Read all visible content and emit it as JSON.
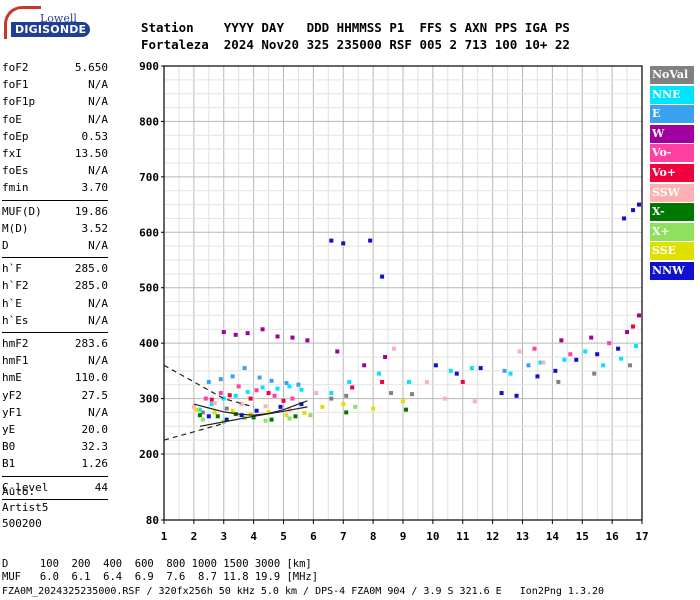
{
  "logo": {
    "line1": "Lowell",
    "line2": "DIGISONDE"
  },
  "header": {
    "row1": "Station    YYYY DAY   DDD HHMMSS P1  FFS S AXN PPS IGA PS",
    "row2": "Fortaleza  2024 Nov20 325 235000 RSF 005 2 713 100 10+ 22"
  },
  "params": [
    {
      "group": [
        {
          "k": "foF2",
          "v": "5.650"
        },
        {
          "k": "foF1",
          "v": "N/A"
        },
        {
          "k": "foF1p",
          "v": "N/A"
        },
        {
          "k": "foE",
          "v": "N/A"
        },
        {
          "k": "foEp",
          "v": "0.53"
        },
        {
          "k": "fxI",
          "v": "13.50"
        },
        {
          "k": "foEs",
          "v": "N/A"
        },
        {
          "k": "fmin",
          "v": "3.70"
        }
      ]
    },
    {
      "group": [
        {
          "k": "MUF(D)",
          "v": "19.86"
        },
        {
          "k": "M(D)",
          "v": "3.52"
        },
        {
          "k": "D",
          "v": "N/A"
        }
      ]
    },
    {
      "group": [
        {
          "k": "h`F",
          "v": "285.0"
        },
        {
          "k": "h`F2",
          "v": "285.0"
        },
        {
          "k": "h`E",
          "v": "N/A"
        },
        {
          "k": "h`Es",
          "v": "N/A"
        }
      ]
    },
    {
      "group": [
        {
          "k": "hmF2",
          "v": "283.6"
        },
        {
          "k": "hmF1",
          "v": "N/A"
        },
        {
          "k": "hmE",
          "v": "110.0"
        },
        {
          "k": "yF2",
          "v": "27.5"
        },
        {
          "k": "yF1",
          "v": "N/A"
        },
        {
          "k": "yE",
          "v": "20.0"
        },
        {
          "k": "B0",
          "v": "32.3"
        },
        {
          "k": "B1",
          "v": "1.26"
        }
      ]
    },
    {
      "group": [
        {
          "k": "C-level",
          "v": "44"
        }
      ]
    }
  ],
  "auto_notes": [
    "Auto:",
    "Artist5",
    "500200"
  ],
  "footer": {
    "d_row": "D     100  200  400  600  800 1000 1500 3000 [km]",
    "muf_row": "MUF   6.0  6.1  6.4  6.9  7.6  8.7 11.8 19.9 [MHz]",
    "file_row": "FZA0M_2024325235000.RSF / 320fx256h 50 kHz 5.0 km / DPS-4 FZA0M 904 / 3.9 S 321.6 E   Ion2Png 1.3.20"
  },
  "legend": [
    {
      "name": "NoVal",
      "bg": "#808080",
      "fg": "#ffffff"
    },
    {
      "name": "NNE",
      "bg": "#00e5ff",
      "fg": "#ffffff"
    },
    {
      "name": "E",
      "bg": "#3aa0f0",
      "fg": "#ffffff"
    },
    {
      "name": "W",
      "bg": "#a000a0",
      "fg": "#ffffff"
    },
    {
      "name": "Vo-",
      "bg": "#ff40a0",
      "fg": "#ffffff"
    },
    {
      "name": "Vo+",
      "bg": "#f0003c",
      "fg": "#ffffff"
    },
    {
      "name": "SSW",
      "bg": "#ffb0b0",
      "fg": "#ffffff"
    },
    {
      "name": "X-",
      "bg": "#007800",
      "fg": "#ffffff"
    },
    {
      "name": "X+",
      "bg": "#90e060",
      "fg": "#ffffff"
    },
    {
      "name": "SSE",
      "bg": "#e0e000",
      "fg": "#ffffff"
    },
    {
      "name": "NNW",
      "bg": "#1010d0",
      "fg": "#ffffff"
    }
  ],
  "chart_data": {
    "type": "scatter",
    "x_ticks": [
      "1",
      "2",
      "3",
      "4",
      "5",
      "6",
      "7",
      "8",
      "9",
      "10",
      "11",
      "12",
      "13",
      "14",
      "15",
      "16",
      "17"
    ],
    "y_ticks": [
      "900",
      "800",
      "700",
      "600",
      "500",
      "400",
      "300",
      "200",
      "80"
    ],
    "xlim": [
      1,
      17
    ],
    "ylim": [
      80,
      900
    ],
    "grid": true,
    "legend_position": "right",
    "series": [
      {
        "color_key": "NoVal",
        "points": [
          [
            2.3,
            275
          ],
          [
            3.1,
            282
          ],
          [
            6.6,
            300
          ],
          [
            7.1,
            305
          ],
          [
            8.6,
            310
          ],
          [
            9.3,
            308
          ],
          [
            14.2,
            330
          ],
          [
            15.4,
            345
          ],
          [
            16.6,
            360
          ]
        ]
      },
      {
        "color_key": "NNE",
        "points": [
          [
            2.2,
            280
          ],
          [
            2.6,
            290
          ],
          [
            3.0,
            300
          ],
          [
            3.4,
            305
          ],
          [
            3.8,
            312
          ],
          [
            4.3,
            320
          ],
          [
            4.8,
            318
          ],
          [
            5.2,
            322
          ],
          [
            5.6,
            316
          ],
          [
            6.6,
            310
          ],
          [
            7.2,
            330
          ],
          [
            8.2,
            345
          ],
          [
            9.2,
            330
          ],
          [
            10.6,
            350
          ],
          [
            11.3,
            355
          ],
          [
            12.6,
            345
          ],
          [
            13.6,
            365
          ],
          [
            14.4,
            370
          ],
          [
            15.1,
            385
          ],
          [
            15.7,
            360
          ],
          [
            16.3,
            372
          ],
          [
            16.8,
            395
          ]
        ]
      },
      {
        "color_key": "E",
        "points": [
          [
            2.5,
            330
          ],
          [
            2.9,
            335
          ],
          [
            3.3,
            340
          ],
          [
            3.7,
            355
          ],
          [
            4.2,
            338
          ],
          [
            4.6,
            332
          ],
          [
            5.1,
            328
          ],
          [
            5.5,
            325
          ],
          [
            12.4,
            350
          ],
          [
            13.2,
            360
          ]
        ]
      },
      {
        "color_key": "W",
        "points": [
          [
            3.0,
            420
          ],
          [
            3.4,
            415
          ],
          [
            3.8,
            418
          ],
          [
            4.3,
            425
          ],
          [
            4.8,
            412
          ],
          [
            5.3,
            410
          ],
          [
            5.8,
            405
          ],
          [
            6.8,
            385
          ],
          [
            7.7,
            360
          ],
          [
            8.4,
            375
          ],
          [
            14.3,
            405
          ],
          [
            15.3,
            410
          ],
          [
            16.5,
            420
          ],
          [
            16.9,
            450
          ]
        ]
      },
      {
        "color_key": "Vo-",
        "points": [
          [
            2.4,
            300
          ],
          [
            2.9,
            310
          ],
          [
            3.5,
            322
          ],
          [
            4.1,
            315
          ],
          [
            4.7,
            305
          ],
          [
            5.3,
            300
          ],
          [
            13.4,
            390
          ],
          [
            14.6,
            380
          ],
          [
            15.9,
            400
          ]
        ]
      },
      {
        "color_key": "Vo+",
        "points": [
          [
            2.6,
            298
          ],
          [
            3.2,
            306
          ],
          [
            3.9,
            300
          ],
          [
            4.5,
            310
          ],
          [
            5.0,
            296
          ],
          [
            7.3,
            320
          ],
          [
            8.3,
            330
          ],
          [
            11.0,
            330
          ],
          [
            16.7,
            430
          ]
        ]
      },
      {
        "color_key": "SSW",
        "points": [
          [
            2.0,
            285
          ],
          [
            2.7,
            292
          ],
          [
            3.6,
            290
          ],
          [
            4.4,
            286
          ],
          [
            5.2,
            280
          ],
          [
            6.1,
            310
          ],
          [
            8.7,
            390
          ],
          [
            9.8,
            330
          ],
          [
            10.4,
            300
          ],
          [
            11.4,
            295
          ],
          [
            12.9,
            385
          ],
          [
            13.7,
            365
          ]
        ]
      },
      {
        "color_key": "X-",
        "points": [
          [
            2.2,
            270
          ],
          [
            2.8,
            268
          ],
          [
            3.4,
            272
          ],
          [
            4.0,
            266
          ],
          [
            4.6,
            262
          ],
          [
            5.4,
            268
          ],
          [
            7.1,
            275
          ],
          [
            9.1,
            280
          ]
        ]
      },
      {
        "color_key": "X+",
        "points": [
          [
            2.3,
            262
          ],
          [
            3.0,
            258
          ],
          [
            3.7,
            265
          ],
          [
            4.4,
            260
          ],
          [
            5.2,
            264
          ],
          [
            5.9,
            270
          ],
          [
            7.4,
            285
          ]
        ]
      },
      {
        "color_key": "SSE",
        "points": [
          [
            2.1,
            280
          ],
          [
            2.7,
            275
          ],
          [
            3.3,
            278
          ],
          [
            3.9,
            272
          ],
          [
            4.5,
            276
          ],
          [
            5.1,
            270
          ],
          [
            5.7,
            274
          ],
          [
            6.3,
            285
          ],
          [
            7.0,
            290
          ],
          [
            8.0,
            282
          ],
          [
            9.0,
            295
          ]
        ]
      },
      {
        "color_key": "NNW",
        "points": [
          [
            2.5,
            268
          ],
          [
            3.1,
            262
          ],
          [
            3.6,
            270
          ],
          [
            4.1,
            278
          ],
          [
            4.9,
            285
          ],
          [
            5.6,
            290
          ],
          [
            6.6,
            585
          ],
          [
            7.0,
            580
          ],
          [
            7.9,
            585
          ],
          [
            8.3,
            520
          ],
          [
            10.1,
            360
          ],
          [
            10.8,
            345
          ],
          [
            11.6,
            355
          ],
          [
            12.3,
            310
          ],
          [
            12.8,
            305
          ],
          [
            13.5,
            340
          ],
          [
            14.1,
            350
          ],
          [
            14.8,
            370
          ],
          [
            15.5,
            380
          ],
          [
            16.2,
            390
          ],
          [
            16.4,
            625
          ],
          [
            16.7,
            640
          ],
          [
            16.9,
            650
          ]
        ]
      }
    ],
    "traces": [
      {
        "style": "dashed",
        "points": [
          [
            1.0,
            360
          ],
          [
            2.0,
            330
          ],
          [
            3.0,
            300
          ],
          [
            4.0,
            285
          ]
        ]
      },
      {
        "style": "dashed",
        "points": [
          [
            1.0,
            225
          ],
          [
            2.0,
            240
          ],
          [
            3.0,
            255
          ]
        ]
      },
      {
        "style": "solid",
        "points": [
          [
            2.0,
            290
          ],
          [
            2.5,
            283
          ],
          [
            3.0,
            276
          ],
          [
            3.5,
            272
          ],
          [
            4.0,
            270
          ],
          [
            4.5,
            273
          ],
          [
            5.0,
            280
          ],
          [
            5.5,
            290
          ],
          [
            5.8,
            296
          ]
        ]
      },
      {
        "style": "solid",
        "points": [
          [
            2.2,
            250
          ],
          [
            3.0,
            258
          ],
          [
            4.0,
            268
          ],
          [
            5.0,
            277
          ],
          [
            5.8,
            285
          ]
        ]
      }
    ]
  }
}
